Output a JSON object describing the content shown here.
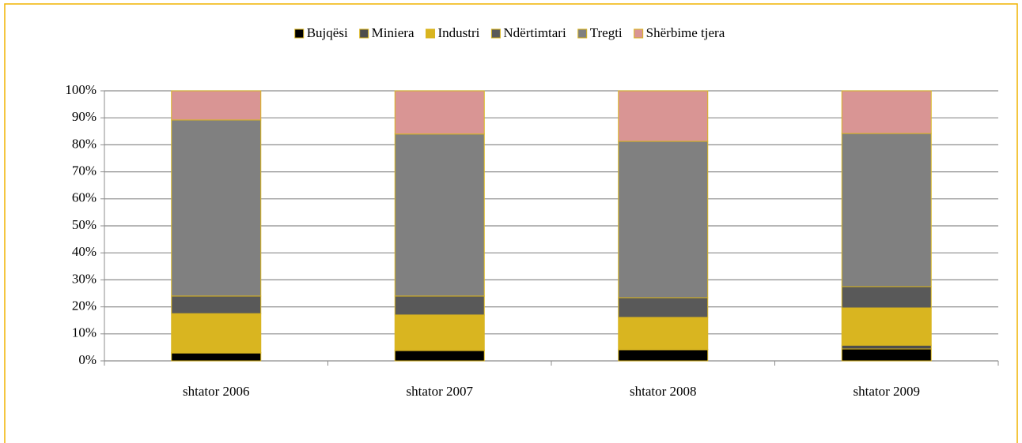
{
  "chart_data": {
    "type": "stacked_bar",
    "categories": [
      "shtator 2006",
      "shtator 2007",
      "shtator 2008",
      "shtator 2009"
    ],
    "series": [
      {
        "name": "Bujqësi",
        "color": "#000000",
        "values": [
          2.9,
          3.8,
          4.1,
          4.4
        ]
      },
      {
        "name": "Miniera",
        "color": "#4d4d4d",
        "values": [
          0.2,
          0.2,
          0.2,
          1.4
        ]
      },
      {
        "name": "Industri",
        "color": "#d9b520",
        "values": [
          14.4,
          13.0,
          11.8,
          13.8
        ]
      },
      {
        "name": "Ndërtimtari",
        "color": "#595959",
        "values": [
          6.5,
          7.0,
          7.3,
          7.9
        ]
      },
      {
        "name": "Tregti",
        "color": "#808080",
        "values": [
          65.2,
          60.0,
          57.9,
          56.7
        ]
      },
      {
        "name": "Shërbime tjera",
        "color": "#d99594",
        "values": [
          10.8,
          16.0,
          18.7,
          15.8
        ]
      }
    ],
    "ylim": [
      0,
      100
    ],
    "yticks": [
      {
        "value": 0,
        "label": "0%"
      },
      {
        "value": 10,
        "label": "10%"
      },
      {
        "value": 20,
        "label": "20%"
      },
      {
        "value": 30,
        "label": "30%"
      },
      {
        "value": 40,
        "label": "40%"
      },
      {
        "value": 50,
        "label": "50%"
      },
      {
        "value": 60,
        "label": "60%"
      },
      {
        "value": 70,
        "label": "70%"
      },
      {
        "value": 80,
        "label": "80%"
      },
      {
        "value": 90,
        "label": "90%"
      },
      {
        "value": 100,
        "label": "100%"
      }
    ],
    "grid": true,
    "legend": "top"
  }
}
